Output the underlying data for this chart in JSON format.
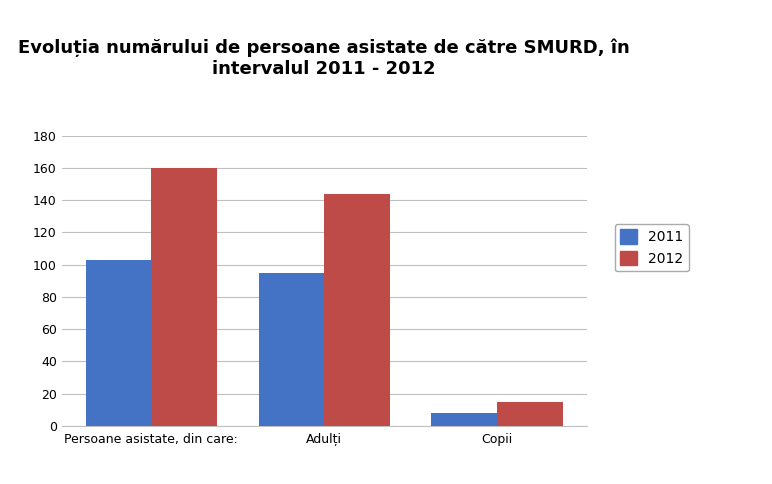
{
  "title": "Evoluția numărului de persoane asistate de către SMURD, în\nintervalul 2011 - 2012",
  "categories": [
    "Persoane asistate, din care:",
    "Adulți",
    "Copii"
  ],
  "series": {
    "2011": [
      103,
      95,
      8
    ],
    "2012": [
      160,
      144,
      15
    ]
  },
  "bar_colors": {
    "2011": "#4472C4",
    "2012": "#BE4B48"
  },
  "ylim": [
    0,
    180
  ],
  "yticks": [
    0,
    20,
    40,
    60,
    80,
    100,
    120,
    140,
    160,
    180
  ],
  "bar_width": 0.38,
  "grid_color": "#C0C0C0",
  "background_color": "#FFFFFF",
  "title_fontsize": 13,
  "tick_fontsize": 9,
  "legend_fontsize": 10
}
